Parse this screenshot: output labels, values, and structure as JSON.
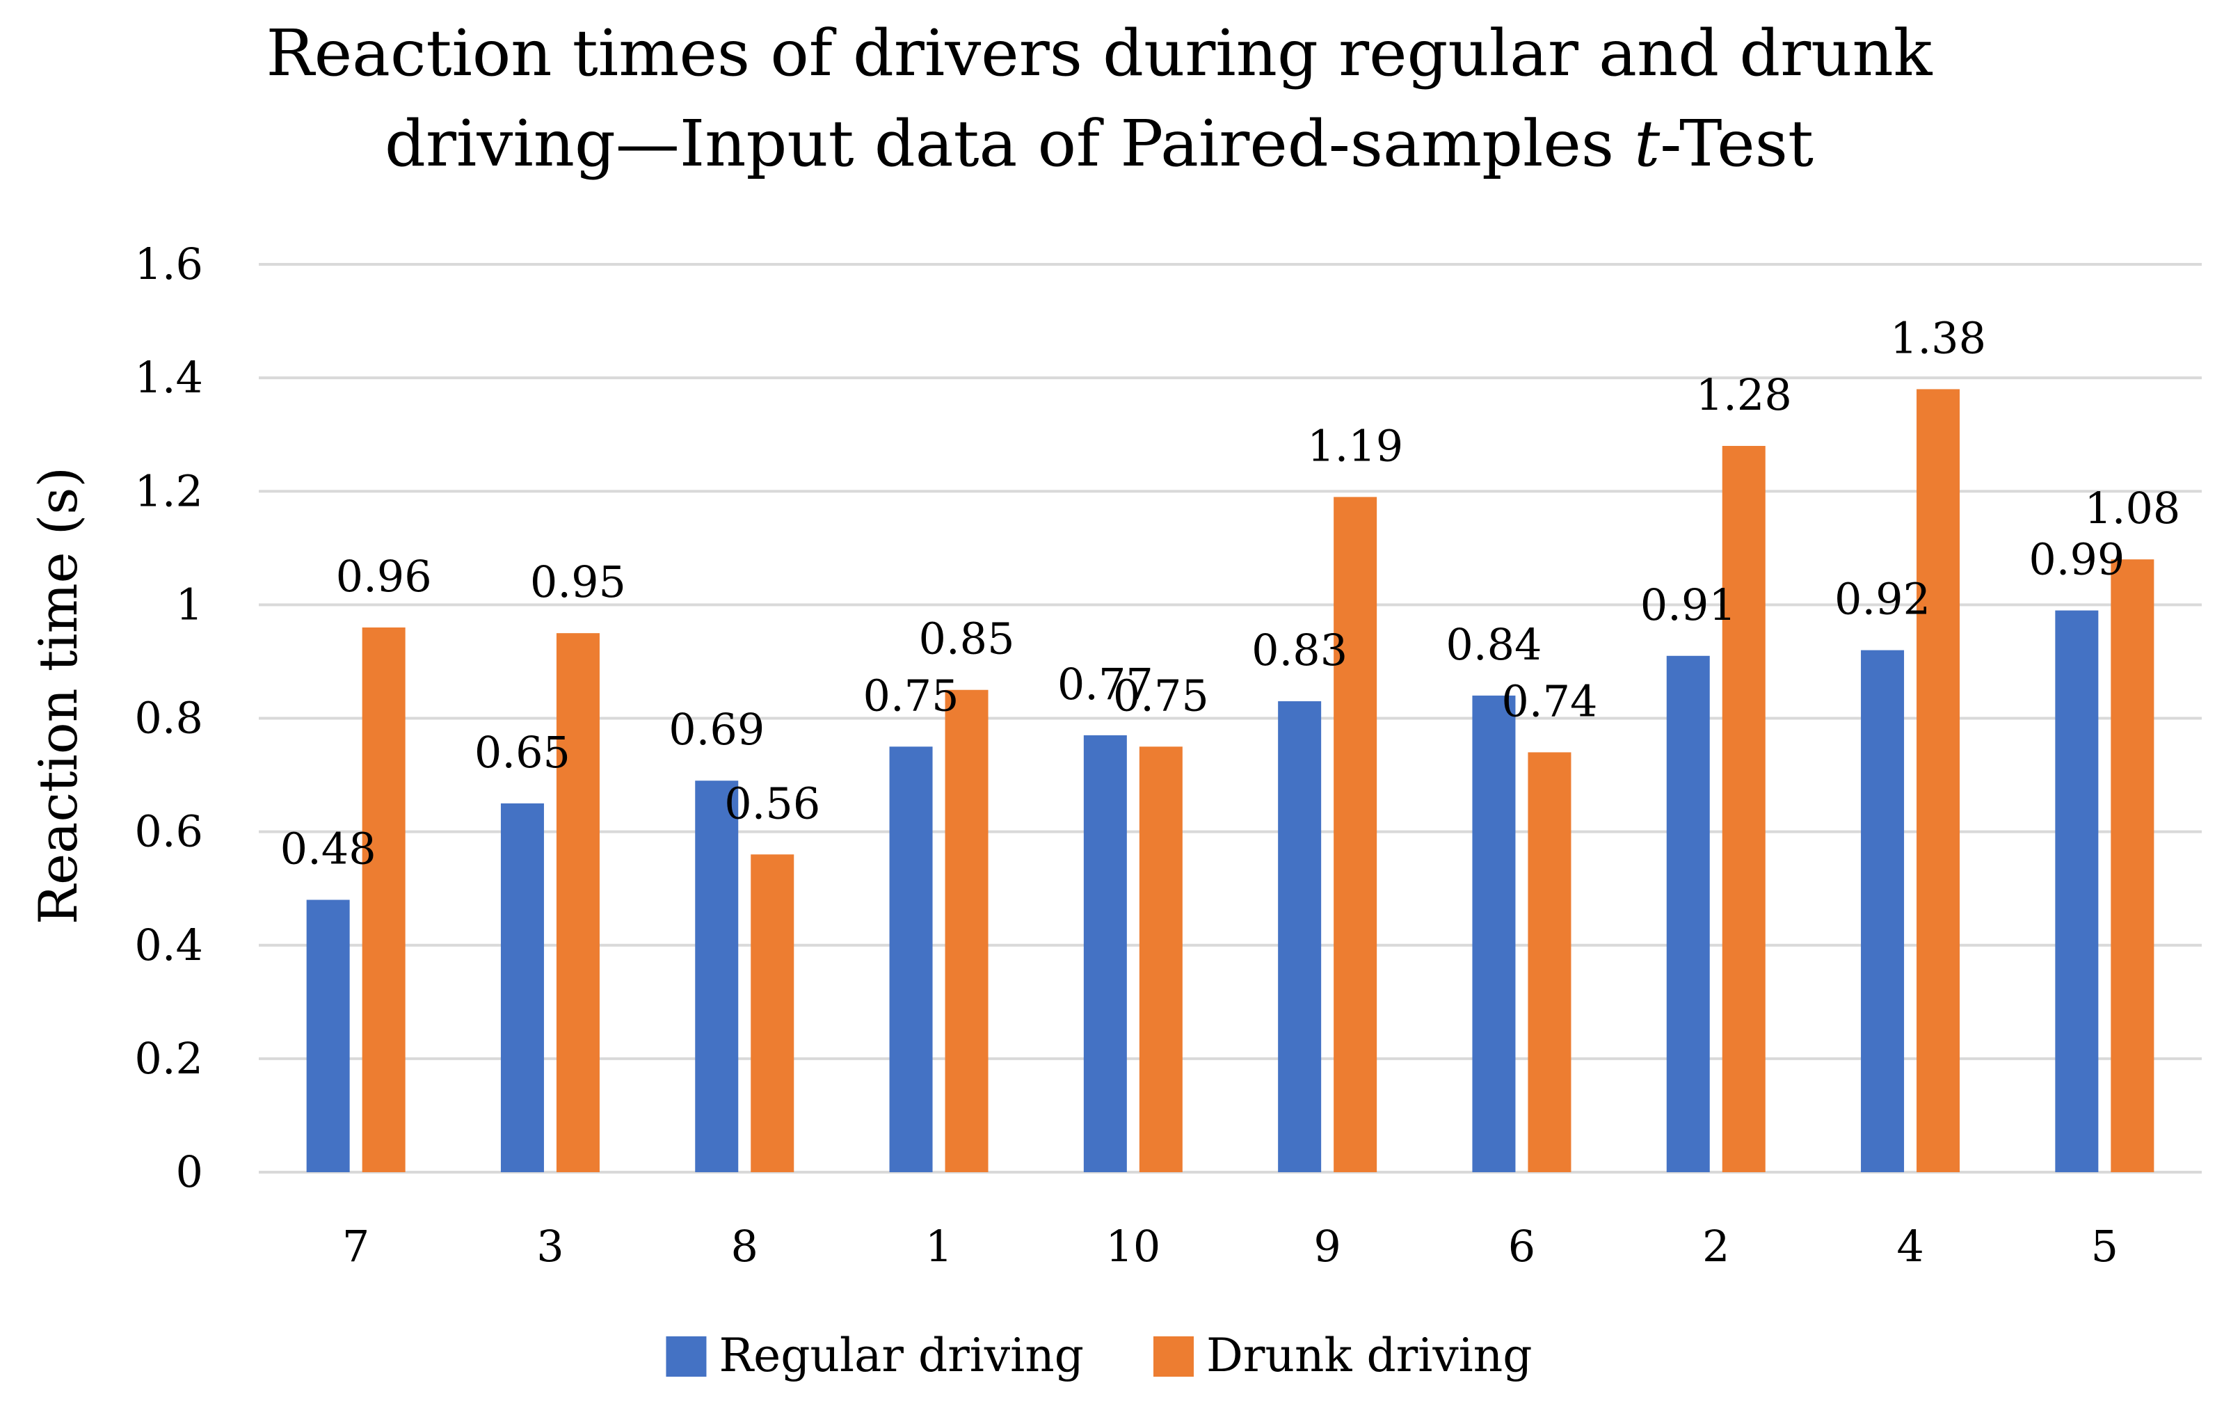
{
  "chart_data": {
    "type": "bar",
    "title_line1": "Reaction times of drivers during regular and drunk",
    "title_line2_prefix": "driving—Input data of Paired-samples ",
    "title_line2_italic": "t",
    "title_line2_suffix": "-Test",
    "ylabel": "Reaction time (s)",
    "xlabel": "",
    "ylim": [
      0,
      1.6
    ],
    "yticks": [
      "0",
      "0.2",
      "0.4",
      "0.6",
      "0.8",
      "1",
      "1.2",
      "1.4",
      "1.6"
    ],
    "grid": true,
    "legend_position": "bottom",
    "categories": [
      "7",
      "3",
      "8",
      "1",
      "10",
      "9",
      "6",
      "2",
      "4",
      "5"
    ],
    "series": [
      {
        "name": "Regular driving",
        "color": "#4472C4",
        "values": [
          0.48,
          0.65,
          0.69,
          0.75,
          0.77,
          0.83,
          0.84,
          0.91,
          0.92,
          0.99
        ],
        "labels": [
          "0.48",
          "0.65",
          "0.69",
          "0.75",
          "0.77",
          "0.83",
          "0.84",
          "0.91",
          "0.92",
          "0.99"
        ]
      },
      {
        "name": "Drunk driving",
        "color": "#ED7D31",
        "values": [
          0.96,
          0.95,
          0.56,
          0.85,
          0.75,
          1.19,
          0.74,
          1.28,
          1.38,
          1.08
        ],
        "labels": [
          "0.96",
          "0.95",
          "0.56",
          "0.85",
          "0.75",
          "1.19",
          "0.74",
          "1.28",
          "1.38",
          "1.08"
        ]
      }
    ]
  }
}
